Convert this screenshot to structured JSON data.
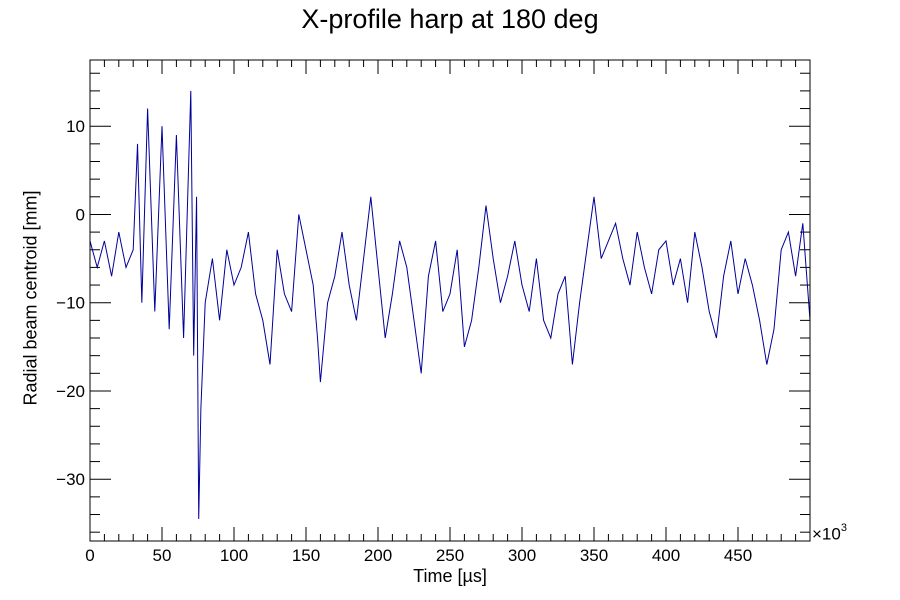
{
  "chart_data": {
    "type": "line",
    "title": "X-profile harp at 180 deg",
    "xlabel_prefix": "Time [",
    "xlabel_unit": "µs",
    "xlabel_suffix": "]",
    "ylabel": "Radial beam centroid [mm]",
    "x_multiplier": "×10",
    "x_multiplier_exp": "3",
    "xlim": [
      0,
      500
    ],
    "ylim": [
      -37,
      17.5
    ],
    "x_ticks": [
      0,
      50,
      100,
      150,
      200,
      250,
      300,
      350,
      400,
      450
    ],
    "y_ticks": [
      -30,
      -20,
      -10,
      0,
      10
    ],
    "line_color": "#00009a",
    "series": [
      {
        "x": [
          0,
          5,
          10,
          15,
          20,
          25,
          30,
          33,
          36,
          40,
          45,
          50,
          55,
          60,
          65,
          70,
          72,
          74,
          75.5,
          77,
          80,
          85,
          90,
          95,
          100,
          105,
          110,
          115,
          120,
          125,
          130,
          135,
          140,
          145,
          150,
          155,
          158,
          160,
          165,
          170,
          175,
          180,
          185,
          190,
          195,
          200,
          205,
          210,
          215,
          220,
          225,
          230,
          235,
          240,
          245,
          250,
          255,
          260,
          265,
          270,
          275,
          280,
          285,
          290,
          295,
          300,
          305,
          310,
          315,
          320,
          325,
          330,
          335,
          340,
          345,
          350,
          355,
          360,
          365,
          370,
          375,
          380,
          385,
          390,
          395,
          400,
          405,
          410,
          415,
          420,
          425,
          430,
          435,
          440,
          445,
          450,
          455,
          460,
          465,
          470,
          475,
          480,
          485,
          490,
          495,
          500
        ],
        "y": [
          -3,
          -6,
          -3,
          -7,
          -2,
          -6,
          -4,
          8,
          -10,
          12,
          -11,
          10,
          -13,
          9,
          -14,
          14,
          -16,
          2,
          -34.5,
          -22,
          -10,
          -5,
          -12,
          -4,
          -8,
          -6,
          -2,
          -9,
          -12,
          -17,
          -4,
          -9,
          -11,
          0,
          -4,
          -8,
          -14,
          -19,
          -10,
          -7,
          -2,
          -8,
          -12,
          -5,
          2,
          -6,
          -14,
          -9,
          -3,
          -6,
          -12,
          -18,
          -7,
          -3,
          -11,
          -9,
          -4,
          -15,
          -12,
          -6,
          1,
          -5,
          -10,
          -7,
          -3,
          -8,
          -11,
          -5,
          -12,
          -14,
          -9,
          -7,
          -17,
          -10,
          -4,
          2,
          -5,
          -3,
          -1,
          -5,
          -8,
          -2,
          -6,
          -9,
          -4,
          -3,
          -8,
          -5,
          -10,
          -2,
          -6,
          -11,
          -14,
          -7,
          -3,
          -9,
          -5,
          -8,
          -12,
          -17,
          -13,
          -4,
          -2,
          -7,
          -1,
          -12
        ]
      }
    ]
  }
}
